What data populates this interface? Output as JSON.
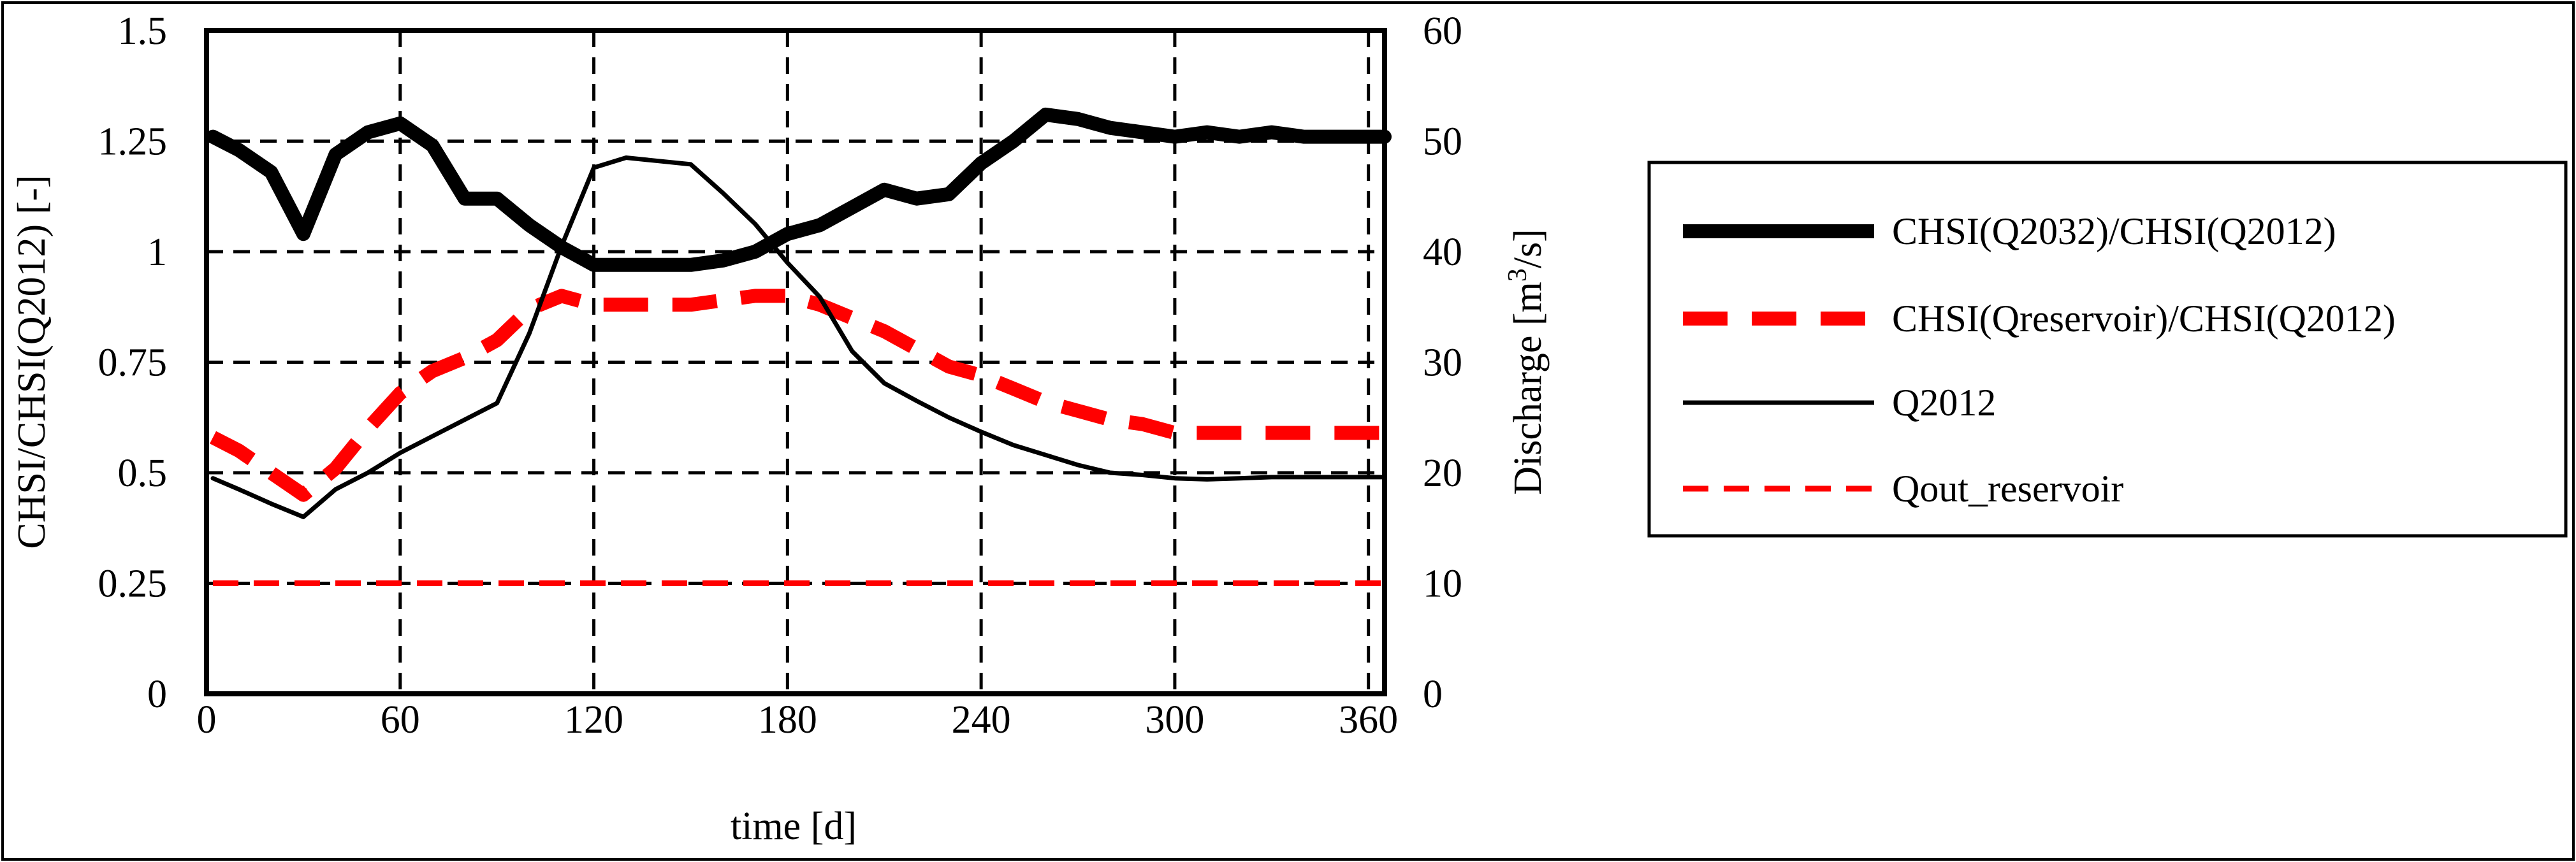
{
  "chart_data": {
    "type": "line",
    "xlabel": "time [d]",
    "ylabel_left": "CHSI/CHSI(Q2012) [-]",
    "ylabel_right_prefix": "Discharge [m",
    "ylabel_right_sup": "3",
    "ylabel_right_suffix": "/s]",
    "xlim": [
      0,
      365
    ],
    "ylim_left": [
      0,
      1.5
    ],
    "ylim_right": [
      0,
      60
    ],
    "x_ticks": [
      0,
      60,
      120,
      180,
      240,
      300,
      360
    ],
    "x_tick_labels": [
      "0",
      "60",
      "120",
      "180",
      "240",
      "300",
      "360"
    ],
    "y_left_ticks": [
      0,
      0.25,
      0.5,
      0.75,
      1,
      1.25,
      1.5
    ],
    "y_left_tick_labels": [
      "0",
      "0.25",
      "0.5",
      "0.75",
      "1",
      "1.25",
      "1.5"
    ],
    "y_right_ticks": [
      0,
      10,
      20,
      30,
      40,
      50,
      60
    ],
    "y_right_tick_labels": [
      "0",
      "10",
      "20",
      "30",
      "40",
      "50",
      "60"
    ],
    "grid": true,
    "legend_position": "right",
    "series": [
      {
        "name": "CHSI(Q2032)/CHSI(Q2012)",
        "axis": "left",
        "color": "#000000",
        "style": "solid-thick",
        "x": [
          0,
          10,
          20,
          30,
          40,
          50,
          60,
          70,
          80,
          90,
          100,
          110,
          120,
          130,
          140,
          150,
          160,
          170,
          180,
          190,
          200,
          210,
          220,
          230,
          240,
          250,
          260,
          270,
          280,
          290,
          300,
          310,
          320,
          330,
          340,
          350,
          365
        ],
        "y": [
          1.26,
          1.23,
          1.18,
          1.04,
          1.22,
          1.27,
          1.29,
          1.24,
          1.12,
          1.12,
          1.06,
          1.01,
          0.97,
          0.97,
          0.97,
          0.97,
          0.98,
          1.0,
          1.04,
          1.06,
          1.1,
          1.14,
          1.12,
          1.13,
          1.2,
          1.25,
          1.31,
          1.3,
          1.28,
          1.27,
          1.26,
          1.27,
          1.26,
          1.27,
          1.26,
          1.26,
          1.26
        ]
      },
      {
        "name": "CHSI(Qreservoir)/CHSI(Q2012)",
        "axis": "left",
        "color": "#ff0000",
        "style": "dashed-thick",
        "x": [
          0,
          10,
          20,
          30,
          40,
          50,
          60,
          70,
          80,
          90,
          100,
          110,
          120,
          130,
          140,
          150,
          160,
          170,
          180,
          190,
          200,
          210,
          220,
          230,
          240,
          250,
          260,
          270,
          280,
          290,
          300,
          310,
          320,
          330,
          340,
          350,
          365
        ],
        "y": [
          0.58,
          0.55,
          0.5,
          0.45,
          0.51,
          0.6,
          0.68,
          0.73,
          0.76,
          0.8,
          0.87,
          0.9,
          0.88,
          0.88,
          0.88,
          0.88,
          0.89,
          0.9,
          0.9,
          0.88,
          0.85,
          0.82,
          0.78,
          0.74,
          0.72,
          0.69,
          0.66,
          0.64,
          0.62,
          0.61,
          0.59,
          0.59,
          0.59,
          0.59,
          0.59,
          0.59,
          0.59
        ]
      },
      {
        "name": "Q2012",
        "axis": "right",
        "color": "#000000",
        "style": "solid-thin",
        "x": [
          0,
          10,
          20,
          30,
          40,
          50,
          60,
          70,
          80,
          90,
          100,
          110,
          120,
          130,
          140,
          150,
          160,
          170,
          180,
          190,
          200,
          210,
          220,
          230,
          240,
          250,
          260,
          270,
          280,
          290,
          300,
          310,
          320,
          330,
          340,
          350,
          365
        ],
        "y": [
          19.5,
          18.5,
          17.2,
          16.0,
          18.5,
          20.0,
          21.8,
          23.3,
          24.8,
          26.3,
          32.6,
          40.5,
          47.6,
          48.5,
          48.2,
          47.9,
          45.3,
          42.5,
          39.0,
          35.9,
          31.0,
          28.1,
          26.5,
          25.0,
          23.7,
          22.5,
          21.6,
          20.7,
          20.0,
          19.8,
          19.5,
          19.4,
          19.5,
          19.6,
          19.6,
          19.6,
          19.6
        ]
      },
      {
        "name": "Qout_reservoir",
        "axis": "right",
        "color": "#ff0000",
        "style": "dashed-thin",
        "x": [
          0,
          365
        ],
        "y": [
          10,
          10
        ]
      }
    ]
  }
}
